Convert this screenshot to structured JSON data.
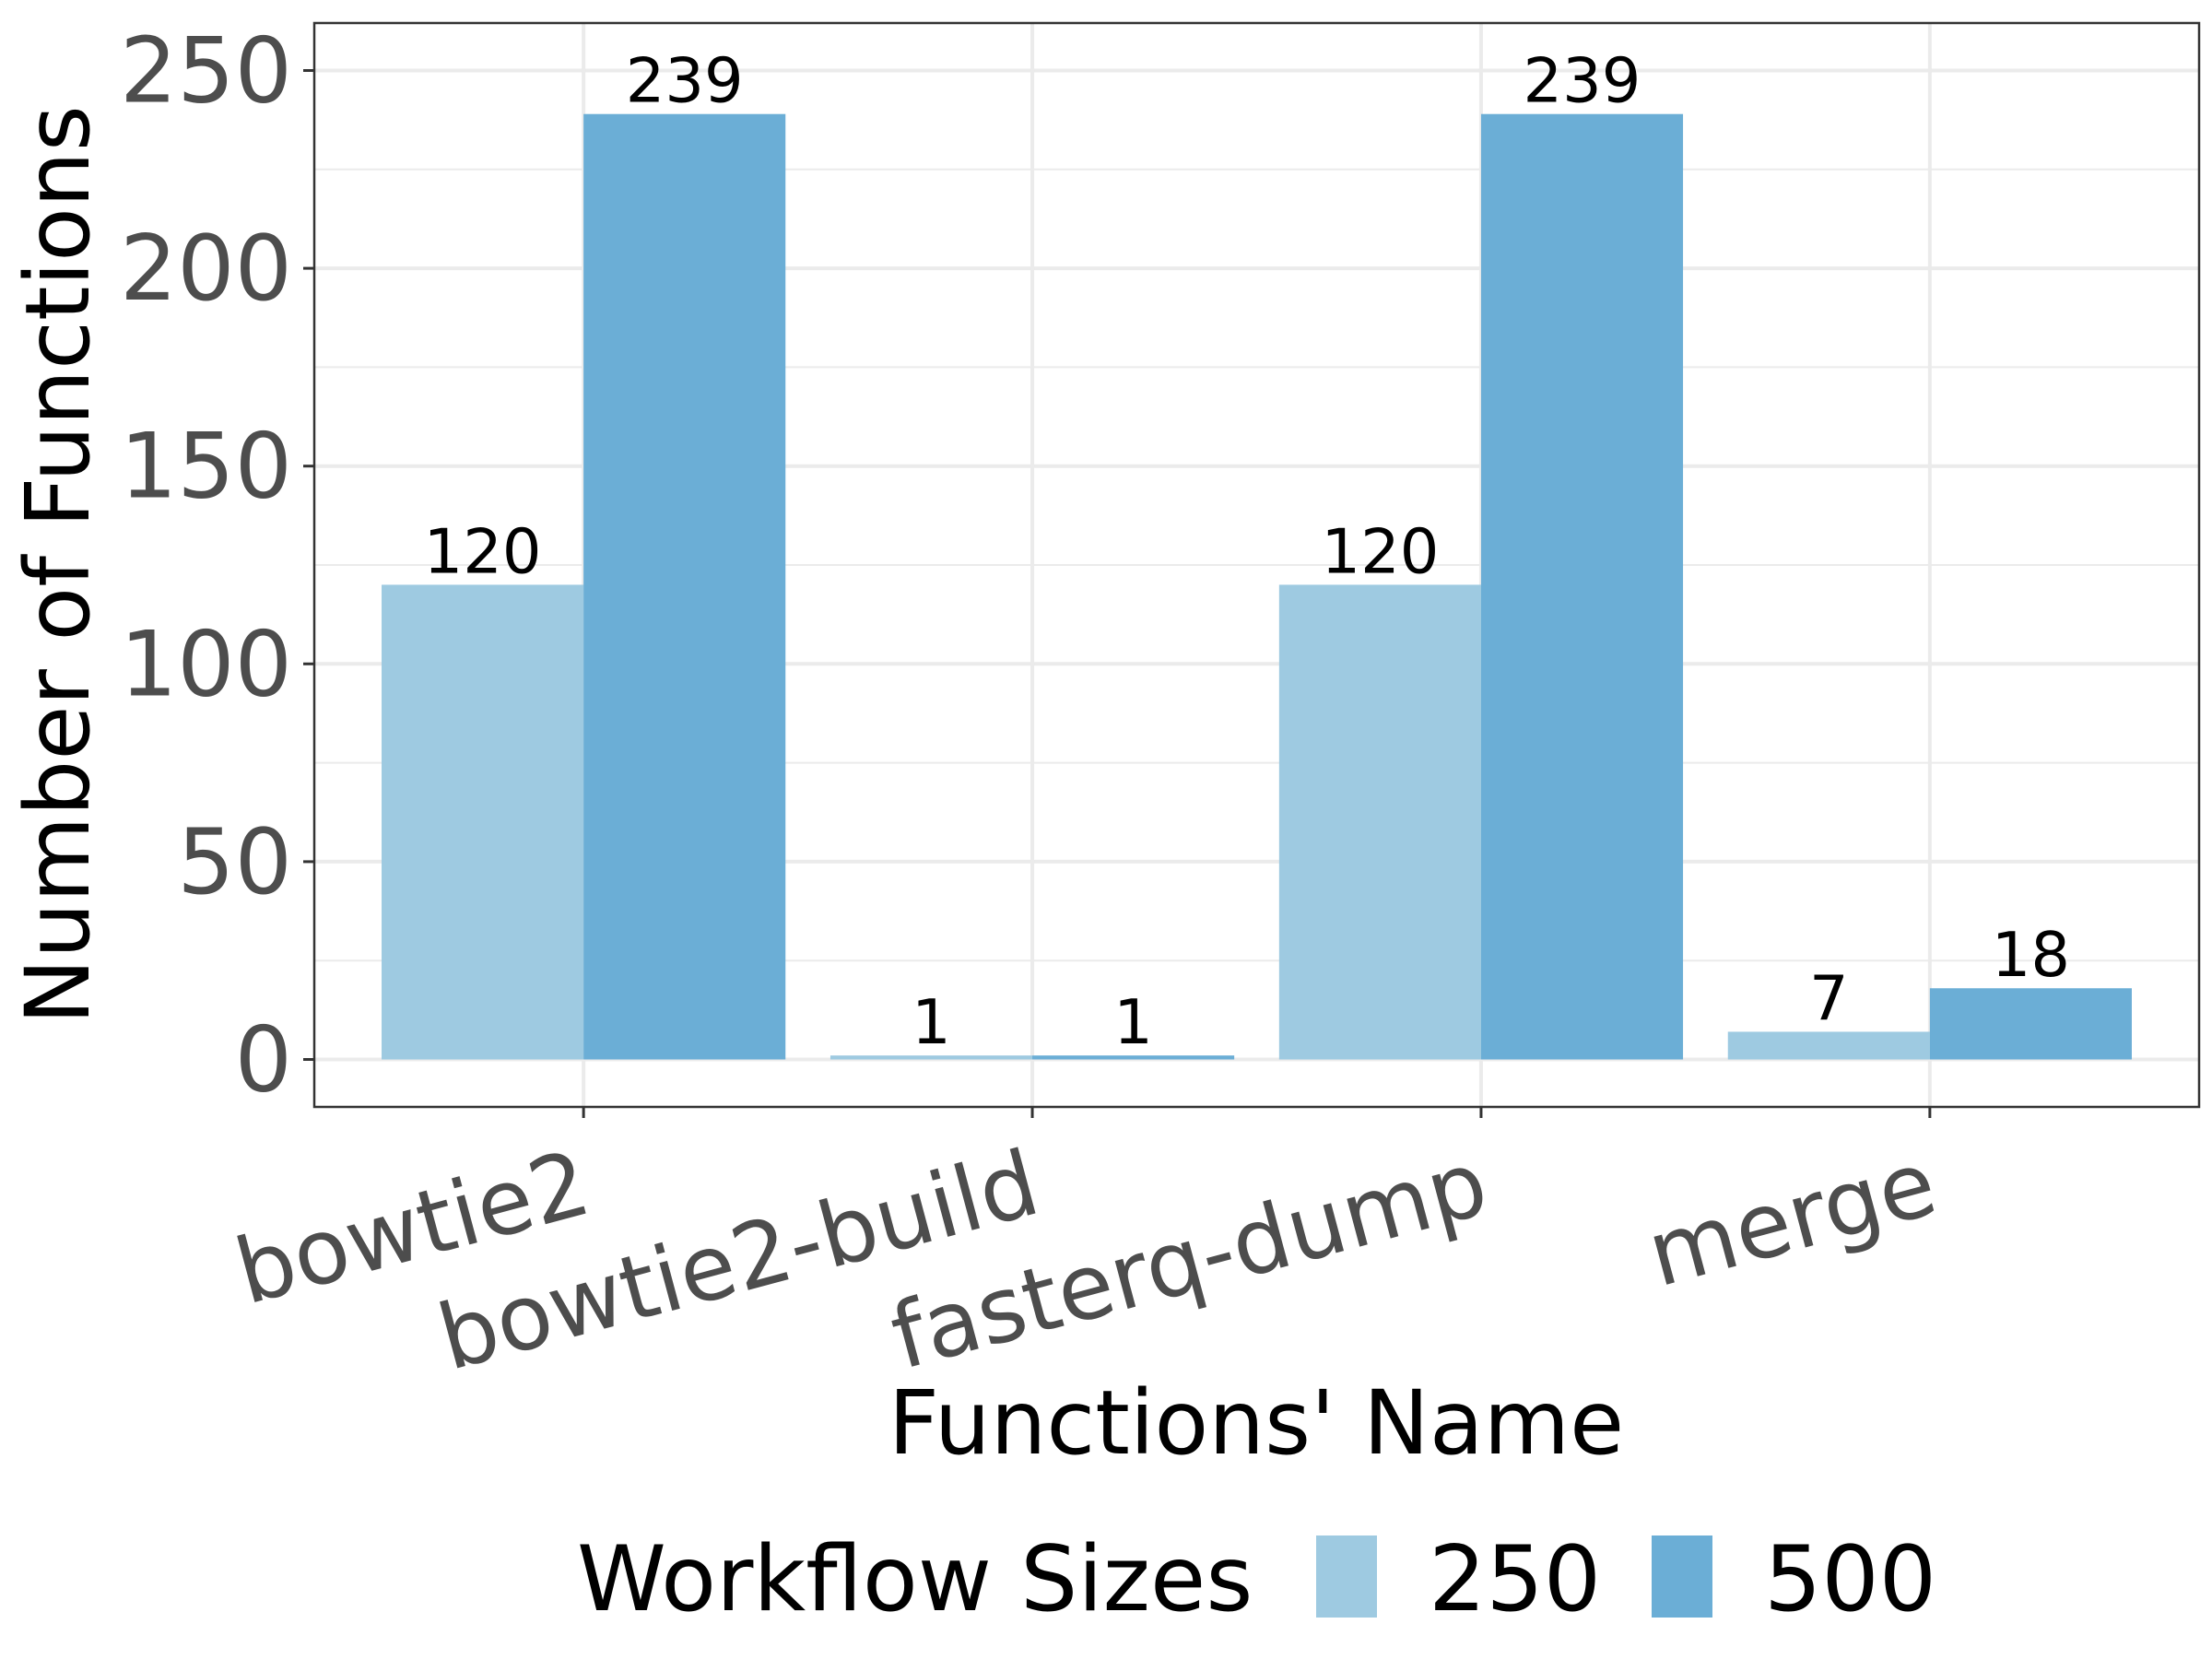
{
  "chart_data": {
    "type": "bar",
    "title": "",
    "xlabel": "Functions' Name",
    "ylabel": "Number of Functions",
    "categories": [
      "bowtie2",
      "bowtie2-build",
      "fasterq-dump",
      "merge"
    ],
    "series": [
      {
        "name": "250",
        "values": [
          120,
          1,
          120,
          7
        ],
        "color": "#9ecae1"
      },
      {
        "name": "500",
        "values": [
          239,
          1,
          239,
          18
        ],
        "color": "#6baed6"
      }
    ],
    "ylim": [
      -12,
      262
    ],
    "yticks": [
      0,
      50,
      100,
      150,
      200,
      250
    ],
    "grid": true,
    "legend": {
      "title": "Workflow Sizes",
      "position": "bottom"
    },
    "x_tick_rotation": "15deg"
  }
}
